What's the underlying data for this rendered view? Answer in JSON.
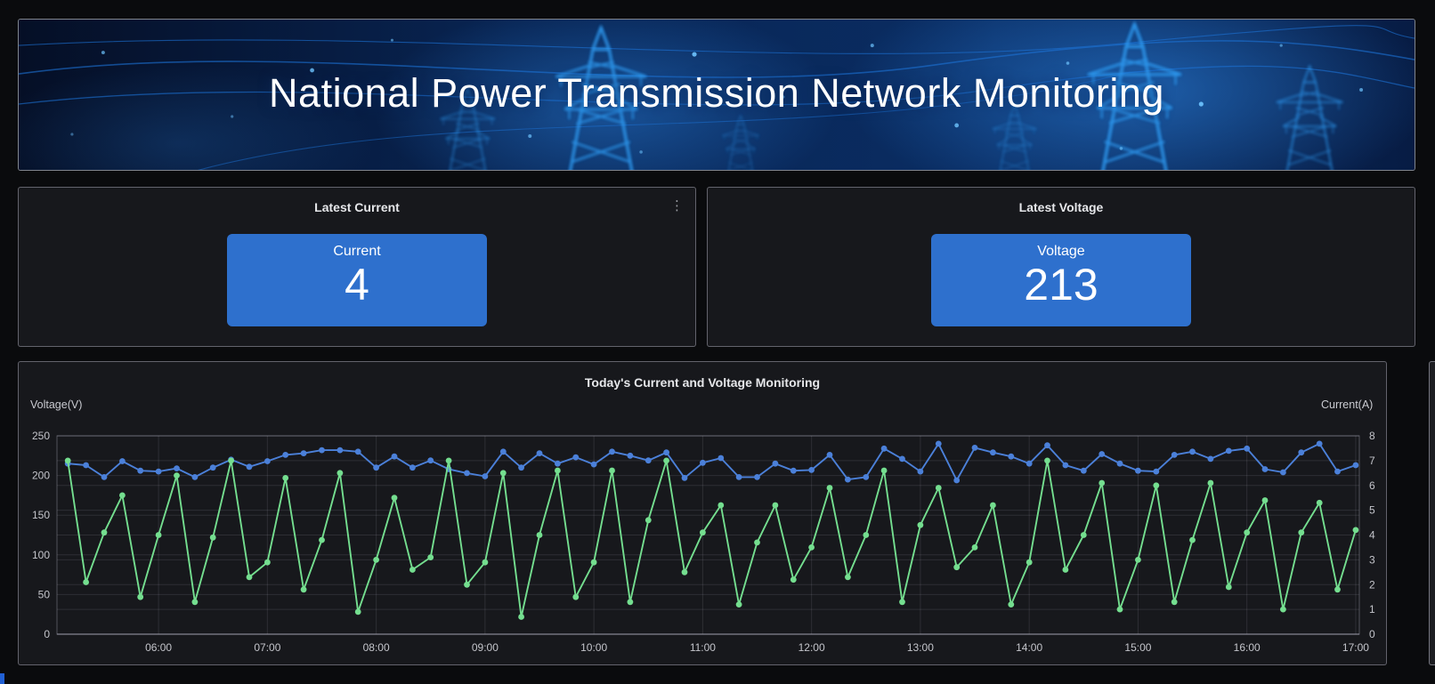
{
  "banner": {
    "title": "National Power Transmission Network Monitoring"
  },
  "icons": {
    "kebab": "⋮"
  },
  "stat_panels": {
    "current": {
      "title": "Latest Current",
      "label": "Current",
      "value": "4"
    },
    "voltage": {
      "title": "Latest Voltage",
      "label": "Voltage",
      "value": "213"
    }
  },
  "chart_panel": {
    "title": "Today's Current and Voltage Monitoring"
  },
  "chart_data": {
    "type": "line",
    "title": "Today's Current and Voltage Monitoring",
    "grid": true,
    "legend": "none",
    "left_axis": {
      "label": "Voltage(V)",
      "min": 0,
      "max": 250,
      "ticks": [
        0,
        50,
        100,
        150,
        200,
        250
      ]
    },
    "right_axis": {
      "label": "Current(A)",
      "min": 0,
      "max": 8,
      "ticks": [
        0,
        1,
        2,
        3,
        4,
        5,
        6,
        7,
        8
      ]
    },
    "x_tick_labels": [
      "06:00",
      "07:00",
      "08:00",
      "09:00",
      "10:00",
      "11:00",
      "12:00",
      "13:00",
      "14:00",
      "15:00",
      "16:00",
      "17:00"
    ],
    "x": [
      "05:10",
      "05:20",
      "05:30",
      "05:40",
      "05:50",
      "06:00",
      "06:10",
      "06:20",
      "06:30",
      "06:40",
      "06:50",
      "07:00",
      "07:10",
      "07:20",
      "07:30",
      "07:40",
      "07:50",
      "08:00",
      "08:10",
      "08:20",
      "08:30",
      "08:40",
      "08:50",
      "09:00",
      "09:10",
      "09:20",
      "09:30",
      "09:40",
      "09:50",
      "10:00",
      "10:10",
      "10:20",
      "10:30",
      "10:40",
      "10:50",
      "11:00",
      "11:10",
      "11:20",
      "11:30",
      "11:40",
      "11:50",
      "12:00",
      "12:10",
      "12:20",
      "12:30",
      "12:40",
      "12:50",
      "13:00",
      "13:10",
      "13:20",
      "13:30",
      "13:40",
      "13:50",
      "14:00",
      "14:10",
      "14:20",
      "14:30",
      "14:40",
      "14:50",
      "15:00",
      "15:10",
      "15:20",
      "15:30",
      "15:40",
      "15:50",
      "16:00",
      "16:10",
      "16:20",
      "16:30",
      "16:40",
      "16:50",
      "17:00"
    ],
    "series": [
      {
        "name": "Voltage",
        "axis": "left",
        "color": "#4b80d9",
        "values": [
          215,
          213,
          198,
          218,
          206,
          205,
          209,
          198,
          210,
          220,
          211,
          218,
          226,
          228,
          232,
          232,
          230,
          210,
          224,
          210,
          219,
          208,
          203,
          199,
          230,
          210,
          228,
          215,
          223,
          214,
          230,
          225,
          219,
          229,
          197,
          216,
          222,
          198,
          198,
          215,
          206,
          207,
          226,
          195,
          198,
          234,
          221,
          205,
          240,
          194,
          235,
          229,
          224,
          215,
          238,
          213,
          206,
          227,
          215,
          206,
          205,
          226,
          230,
          221,
          231,
          234,
          208,
          204,
          229,
          240,
          205,
          213
        ]
      },
      {
        "name": "Current",
        "axis": "right",
        "color": "#74de8f",
        "values": [
          7.0,
          2.1,
          4.1,
          5.6,
          1.5,
          4.0,
          6.4,
          1.3,
          3.9,
          7.0,
          2.3,
          2.9,
          6.3,
          1.8,
          3.8,
          6.5,
          0.9,
          3.0,
          5.5,
          2.6,
          3.1,
          7.0,
          2.0,
          2.9,
          6.5,
          0.7,
          4.0,
          6.6,
          1.5,
          2.9,
          6.6,
          1.3,
          4.6,
          7.0,
          2.5,
          4.1,
          5.2,
          1.2,
          3.7,
          5.2,
          2.2,
          3.5,
          5.9,
          2.3,
          4.0,
          6.6,
          1.3,
          4.4,
          5.9,
          2.7,
          3.5,
          5.2,
          1.2,
          2.9,
          7.0,
          2.6,
          4.0,
          6.1,
          1.0,
          3.0,
          6.0,
          1.3,
          3.8,
          6.1,
          1.9,
          4.1,
          5.4,
          1.0,
          4.1,
          5.3,
          1.8,
          4.2
        ]
      }
    ]
  },
  "colors": {
    "page_bg": "#0a0b0d",
    "panel_bg": "#17181c",
    "stat_tile_bg": "#2e70cd",
    "voltage_series": "#4b80d9",
    "current_series": "#74de8f"
  }
}
